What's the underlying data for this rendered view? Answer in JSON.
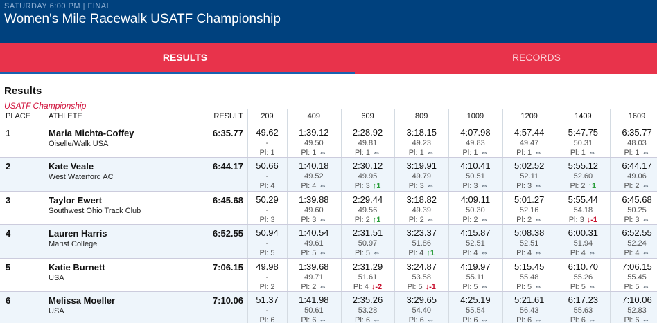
{
  "header": {
    "status": "SATURDAY 6:00 PM | FINAL",
    "title": "Women's Mile Racewalk USATF Championship"
  },
  "tabs": [
    "RESULTS",
    "RECORDS"
  ],
  "section": {
    "title": "Results",
    "subtitle": "USATF Championship"
  },
  "table": {
    "columns": [
      "PLACE",
      "ATHLETE",
      "RESULT",
      "209",
      "409",
      "609",
      "809",
      "1009",
      "1209",
      "1409",
      "1609"
    ],
    "rows": [
      {
        "place": "1",
        "athlete": "Maria Michta-Coffey",
        "team": "Oiselle/Walk USA",
        "result": "6:35.77",
        "splits": [
          {
            "time": "49.62",
            "lap": "-",
            "place": "Pl: 1"
          },
          {
            "time": "1:39.12",
            "lap": "49.50",
            "place": "Pl: 1",
            "move": "⇔"
          },
          {
            "time": "2:28.92",
            "lap": "49.81",
            "place": "Pl: 1",
            "move": "⇔"
          },
          {
            "time": "3:18.15",
            "lap": "49.23",
            "place": "Pl: 1",
            "move": "⇔"
          },
          {
            "time": "4:07.98",
            "lap": "49.83",
            "place": "Pl: 1",
            "move": "⇔"
          },
          {
            "time": "4:57.44",
            "lap": "49.47",
            "place": "Pl: 1",
            "move": "⇔"
          },
          {
            "time": "5:47.75",
            "lap": "50.31",
            "place": "Pl: 1",
            "move": "⇔"
          },
          {
            "time": "6:35.77",
            "lap": "48.03",
            "place": "Pl: 1",
            "move": "⇔"
          }
        ]
      },
      {
        "place": "2",
        "athlete": "Kate Veale",
        "team": "West Waterford AC",
        "result": "6:44.17",
        "splits": [
          {
            "time": "50.66",
            "lap": "-",
            "place": "Pl: 4"
          },
          {
            "time": "1:40.18",
            "lap": "49.52",
            "place": "Pl: 4",
            "move": "⇔"
          },
          {
            "time": "2:30.12",
            "lap": "49.95",
            "place": "Pl: 3",
            "move": "↑1"
          },
          {
            "time": "3:19.91",
            "lap": "49.79",
            "place": "Pl: 3",
            "move": "⇔"
          },
          {
            "time": "4:10.41",
            "lap": "50.51",
            "place": "Pl: 3",
            "move": "⇔"
          },
          {
            "time": "5:02.52",
            "lap": "52.11",
            "place": "Pl: 3",
            "move": "⇔"
          },
          {
            "time": "5:55.12",
            "lap": "52.60",
            "place": "Pl: 2",
            "move": "↑1"
          },
          {
            "time": "6:44.17",
            "lap": "49.06",
            "place": "Pl: 2",
            "move": "⇔"
          }
        ]
      },
      {
        "place": "3",
        "athlete": "Taylor Ewert",
        "team": "Southwest Ohio Track Club",
        "result": "6:45.68",
        "splits": [
          {
            "time": "50.29",
            "lap": "-",
            "place": "Pl: 3"
          },
          {
            "time": "1:39.88",
            "lap": "49.60",
            "place": "Pl: 3",
            "move": "⇔"
          },
          {
            "time": "2:29.44",
            "lap": "49.56",
            "place": "Pl: 2",
            "move": "↑1"
          },
          {
            "time": "3:18.82",
            "lap": "49.39",
            "place": "Pl: 2",
            "move": "⇔"
          },
          {
            "time": "4:09.11",
            "lap": "50.30",
            "place": "Pl: 2",
            "move": "⇔"
          },
          {
            "time": "5:01.27",
            "lap": "52.16",
            "place": "Pl: 2",
            "move": "⇔"
          },
          {
            "time": "5:55.44",
            "lap": "54.18",
            "place": "Pl: 3",
            "move": "↓-1"
          },
          {
            "time": "6:45.68",
            "lap": "50.25",
            "place": "Pl: 3",
            "move": "⇔"
          }
        ]
      },
      {
        "place": "4",
        "athlete": "Lauren Harris",
        "team": "Marist College",
        "result": "6:52.55",
        "splits": [
          {
            "time": "50.94",
            "lap": "-",
            "place": "Pl: 5"
          },
          {
            "time": "1:40.54",
            "lap": "49.61",
            "place": "Pl: 5",
            "move": "⇔"
          },
          {
            "time": "2:31.51",
            "lap": "50.97",
            "place": "Pl: 5",
            "move": "⇔"
          },
          {
            "time": "3:23.37",
            "lap": "51.86",
            "place": "Pl: 4",
            "move": "↑1"
          },
          {
            "time": "4:15.87",
            "lap": "52.51",
            "place": "Pl: 4",
            "move": "⇔"
          },
          {
            "time": "5:08.38",
            "lap": "52.51",
            "place": "Pl: 4",
            "move": "⇔"
          },
          {
            "time": "6:00.31",
            "lap": "51.94",
            "place": "Pl: 4",
            "move": "⇔"
          },
          {
            "time": "6:52.55",
            "lap": "52.24",
            "place": "Pl: 4",
            "move": "⇔"
          }
        ]
      },
      {
        "place": "5",
        "athlete": "Katie Burnett",
        "team": "USA",
        "result": "7:06.15",
        "splits": [
          {
            "time": "49.98",
            "lap": "-",
            "place": "Pl: 2"
          },
          {
            "time": "1:39.68",
            "lap": "49.71",
            "place": "Pl: 2",
            "move": "⇔"
          },
          {
            "time": "2:31.29",
            "lap": "51.61",
            "place": "Pl: 4",
            "move": "↓-2"
          },
          {
            "time": "3:24.87",
            "lap": "53.58",
            "place": "Pl: 5",
            "move": "↓-1"
          },
          {
            "time": "4:19.97",
            "lap": "55.11",
            "place": "Pl: 5",
            "move": "⇔"
          },
          {
            "time": "5:15.45",
            "lap": "55.48",
            "place": "Pl: 5",
            "move": "⇔"
          },
          {
            "time": "6:10.70",
            "lap": "55.26",
            "place": "Pl: 5",
            "move": "⇔"
          },
          {
            "time": "7:06.15",
            "lap": "55.45",
            "place": "Pl: 5",
            "move": "⇔"
          }
        ]
      },
      {
        "place": "6",
        "athlete": "Melissa Moeller",
        "team": "USA",
        "result": "7:10.06",
        "splits": [
          {
            "time": "51.37",
            "lap": "-",
            "place": "Pl: 6"
          },
          {
            "time": "1:41.98",
            "lap": "50.61",
            "place": "Pl: 6",
            "move": "⇔"
          },
          {
            "time": "2:35.26",
            "lap": "53.28",
            "place": "Pl: 6",
            "move": "⇔"
          },
          {
            "time": "3:29.65",
            "lap": "54.40",
            "place": "Pl: 6",
            "move": "⇔"
          },
          {
            "time": "4:25.19",
            "lap": "55.54",
            "place": "Pl: 6",
            "move": "⇔"
          },
          {
            "time": "5:21.61",
            "lap": "56.43",
            "place": "Pl: 6",
            "move": "⇔"
          },
          {
            "time": "6:17.23",
            "lap": "55.63",
            "place": "Pl: 6",
            "move": "⇔"
          },
          {
            "time": "7:10.06",
            "lap": "52.83",
            "place": "Pl: 6",
            "move": "⇔"
          }
        ]
      }
    ]
  }
}
